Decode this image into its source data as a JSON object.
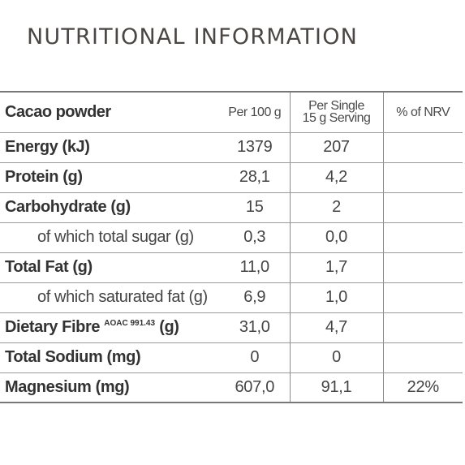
{
  "title": "NUTRITIONAL INFORMATION",
  "table": {
    "columns": {
      "product": "Cacao powder",
      "per100": "Per 100 g",
      "serving_line1": "Per Single",
      "serving_line2": "15 g Serving",
      "nrv": "% of NRV"
    },
    "rows": [
      {
        "label": "Energy (kJ)",
        "per100": "1379",
        "serving": "207",
        "nrv": ""
      },
      {
        "label": "Protein (g)",
        "per100": "28,1",
        "serving": "4,2",
        "nrv": ""
      },
      {
        "label": "Carbohydrate (g)",
        "per100": "15",
        "serving": "2",
        "nrv": ""
      },
      {
        "label": "of which total sugar (g)",
        "per100": "0,3",
        "serving": "0,0",
        "nrv": ""
      },
      {
        "label": "Total Fat (g)",
        "per100": "11,0",
        "serving": "1,7",
        "nrv": ""
      },
      {
        "label": "of which saturated fat (g)",
        "per100": "6,9",
        "serving": "1,0",
        "nrv": ""
      },
      {
        "label": "Dietary Fibre",
        "label_sup": "AOAC 991.43",
        "label_unit": "(g)",
        "per100": "31,0",
        "serving": "4,7",
        "nrv": ""
      },
      {
        "label": "Total Sodium (mg)",
        "per100": "0",
        "serving": "0",
        "nrv": ""
      },
      {
        "label": "Magnesium (mg)",
        "per100": "607,0",
        "serving": "91,1",
        "nrv": "22%"
      }
    ]
  }
}
